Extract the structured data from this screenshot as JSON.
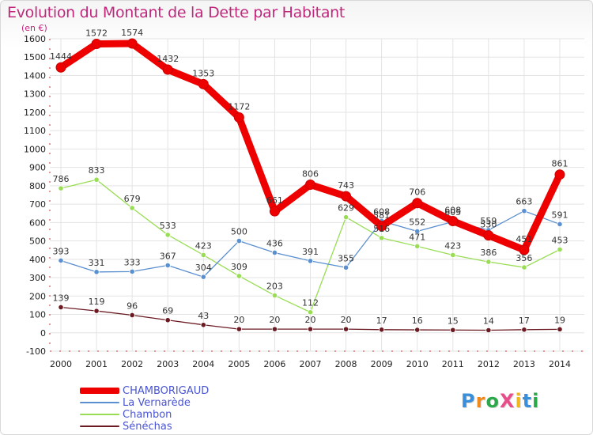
{
  "title": "Evolution du Montant de la Dette par Habitant",
  "unit": "(en €)",
  "logo": "ProXiti",
  "chart_data": {
    "type": "line",
    "x": [
      "2000",
      "2001",
      "2002",
      "2003",
      "2004",
      "2005",
      "2006",
      "2007",
      "2008",
      "2009",
      "2010",
      "2011",
      "2012",
      "2013",
      "2014"
    ],
    "ylim": [
      -100,
      1600
    ],
    "yticks": [
      -100,
      0,
      100,
      200,
      300,
      400,
      500,
      600,
      700,
      800,
      900,
      1000,
      1100,
      1200,
      1300,
      1400,
      1500,
      1600
    ],
    "grid": true,
    "legend_position": "bottom-left",
    "series": [
      {
        "name": "CHAMBORIGAUD",
        "color": "#ee0000",
        "values": [
          1444,
          1572,
          1574,
          1432,
          1353,
          1172,
          661,
          806,
          743,
          581,
          706,
          608,
          530,
          451,
          861
        ]
      },
      {
        "name": "La Vernarède",
        "color": "#5a8fd0",
        "values": [
          393,
          331,
          333,
          367,
          304,
          500,
          436,
          391,
          355,
          608,
          552,
          605,
          559,
          663,
          591
        ]
      },
      {
        "name": "Chambon",
        "color": "#99dd55",
        "values": [
          786,
          833,
          679,
          533,
          423,
          309,
          203,
          112,
          629,
          516,
          471,
          423,
          386,
          356,
          453
        ]
      },
      {
        "name": "Sénéchas",
        "color": "#6b1a22",
        "values": [
          139,
          119,
          96,
          69,
          43,
          20,
          20,
          20,
          20,
          17,
          16,
          15,
          14,
          17,
          19
        ]
      }
    ]
  }
}
